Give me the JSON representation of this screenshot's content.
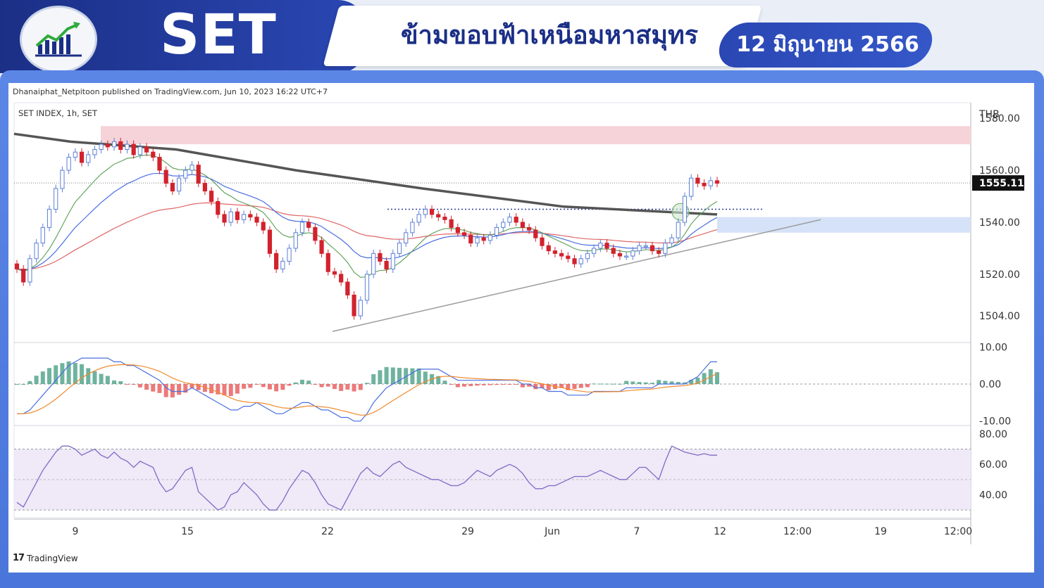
{
  "header": {
    "index_name": "SET",
    "headline": "ข้ามขอบฟ้าเหนือมหาสมุทร",
    "date": "12 มิถุนายน 2566",
    "logo_icon": "bar-chart-growth-icon"
  },
  "tradingview": {
    "credit": "Dhanaiphat_Netpitoon published on TradingView.com, Jun 10, 2023 16:22 UTC+7",
    "symbol": "SET INDEX, 1h, SET",
    "brand": "TradingView",
    "brand_mark": "17"
  },
  "chart_data": {
    "type": "candlestick",
    "currency": "THB",
    "last_price": "1555.11",
    "price_ticks": [
      "1580.00",
      "1560.00",
      "1540.00",
      "1520.00",
      "1504.00"
    ],
    "price_tick_values": [
      1580,
      1560,
      1540,
      1520,
      1504
    ],
    "ylim": [
      1494,
      1586
    ],
    "macd_ticks": [
      "10.00",
      "0.00",
      "-10.00"
    ],
    "macd_tick_values": [
      10,
      0,
      -10
    ],
    "macd_ylim": [
      -11,
      11
    ],
    "rsi_ticks": [
      "80.00",
      "60.00",
      "40.00"
    ],
    "rsi_tick_values": [
      80,
      60,
      40
    ],
    "rsi_ylim": [
      25,
      85
    ],
    "rsi_band": [
      30,
      70
    ],
    "x_ticks": [
      "9",
      "15",
      "22",
      "29",
      "Jun",
      "7",
      "12",
      "12:00",
      "19",
      "12:00"
    ],
    "resistance_zone": [
      1570,
      1577
    ],
    "support_zone": [
      1536,
      1542
    ],
    "breakout_level": 1545,
    "trendline_from": 1498,
    "trendline_to": 1541,
    "close": [
      1522,
      1517,
      1526,
      1532,
      1538,
      1545,
      1553,
      1560,
      1565,
      1567,
      1563,
      1566,
      1568,
      1570,
      1569,
      1571,
      1568,
      1570,
      1566,
      1569,
      1567,
      1565,
      1560,
      1555,
      1552,
      1557,
      1560,
      1562,
      1555,
      1552,
      1548,
      1543,
      1540,
      1544,
      1541,
      1543,
      1542,
      1540,
      1537,
      1528,
      1522,
      1525,
      1530,
      1536,
      1540,
      1538,
      1533,
      1528,
      1521,
      1520,
      1517,
      1512,
      1504,
      1510,
      1520,
      1528,
      1525,
      1522,
      1528,
      1532,
      1536,
      1540,
      1543,
      1545,
      1543,
      1542,
      1541,
      1538,
      1536,
      1535,
      1532,
      1534,
      1533,
      1535,
      1538,
      1540,
      1542,
      1540,
      1538,
      1537,
      1534,
      1531,
      1529,
      1528,
      1527,
      1526,
      1524,
      1526,
      1528,
      1530,
      1532,
      1530,
      1528,
      1527,
      1527,
      1529,
      1531,
      1531,
      1529,
      1528,
      1532,
      1534,
      1540,
      1550,
      1557,
      1555,
      1554,
      1556,
      1555
    ],
    "macd": [
      -8,
      -8,
      -7,
      -5,
      -3,
      -1,
      1,
      3,
      5,
      6,
      7,
      7,
      7,
      7,
      7,
      6,
      6,
      5,
      5,
      4,
      3,
      2,
      1,
      -1,
      -2,
      -2,
      -2,
      -1,
      -2,
      -3,
      -4,
      -5,
      -6,
      -7,
      -7,
      -6,
      -6,
      -5,
      -6,
      -7,
      -8,
      -8,
      -7,
      -6,
      -5,
      -5,
      -6,
      -7,
      -7,
      -8,
      -9,
      -9,
      -10,
      -10,
      -8,
      -5,
      -3,
      -1,
      0,
      1,
      2,
      3,
      4,
      4,
      4,
      4,
      3,
      2,
      1,
      1,
      1,
      1,
      1,
      1,
      1,
      1,
      1,
      1,
      0,
      0,
      -1,
      -1,
      -2,
      -2,
      -2,
      -3,
      -3,
      -3,
      -3,
      -2,
      -2,
      -2,
      -2,
      -2,
      -1,
      -1,
      -1,
      -1,
      -1,
      0,
      0,
      0,
      0,
      0,
      1,
      2,
      4,
      6,
      6
    ],
    "rsi": [
      35,
      32,
      40,
      48,
      56,
      62,
      68,
      72,
      72,
      70,
      66,
      68,
      70,
      66,
      64,
      68,
      64,
      62,
      58,
      62,
      60,
      58,
      48,
      42,
      44,
      50,
      56,
      58,
      42,
      38,
      34,
      30,
      32,
      40,
      42,
      48,
      44,
      40,
      34,
      30,
      30,
      36,
      44,
      50,
      56,
      54,
      48,
      40,
      34,
      32,
      30,
      38,
      46,
      54,
      58,
      54,
      52,
      56,
      60,
      62,
      58,
      56,
      54,
      52,
      50,
      50,
      48,
      46,
      46,
      48,
      52,
      56,
      54,
      52,
      56,
      58,
      60,
      58,
      54,
      48,
      44,
      44,
      46,
      46,
      48,
      50,
      52,
      52,
      52,
      54,
      56,
      54,
      52,
      50,
      50,
      54,
      58,
      58,
      54,
      50,
      62,
      72,
      70,
      68,
      67,
      66,
      67,
      66,
      66
    ]
  }
}
